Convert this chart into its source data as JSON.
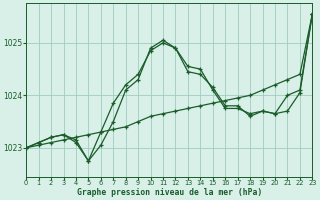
{
  "title": "Graphe pression niveau de la mer (hPa)",
  "bg_color": "#d8f0e8",
  "grid_color": "#a0ccc0",
  "line_color": "#1a5c2a",
  "xlim": [
    0,
    23
  ],
  "ylim": [
    1022.45,
    1025.75
  ],
  "yticks": [
    1023,
    1024,
    1025
  ],
  "xticks": [
    0,
    1,
    2,
    3,
    4,
    5,
    6,
    7,
    8,
    9,
    10,
    11,
    12,
    13,
    14,
    15,
    16,
    17,
    18,
    19,
    20,
    21,
    22,
    23
  ],
  "series1_x": [
    0,
    1,
    2,
    3,
    4,
    5,
    6,
    7,
    8,
    9,
    10,
    11,
    12,
    13,
    14,
    15,
    16,
    17,
    18,
    19,
    20,
    21,
    22,
    23
  ],
  "series1_y": [
    1023.0,
    1023.05,
    1023.1,
    1023.15,
    1023.2,
    1023.25,
    1023.3,
    1023.35,
    1023.4,
    1023.5,
    1023.6,
    1023.65,
    1023.7,
    1023.75,
    1023.8,
    1023.85,
    1023.9,
    1023.95,
    1024.0,
    1024.1,
    1024.2,
    1024.3,
    1024.4,
    1025.55
  ],
  "series2_x": [
    0,
    1,
    2,
    3,
    4,
    5,
    6,
    7,
    8,
    9,
    10,
    11,
    12,
    13,
    14,
    15,
    16,
    17,
    18,
    19,
    20,
    21,
    22,
    23
  ],
  "series2_y": [
    1023.0,
    1023.1,
    1023.2,
    1023.25,
    1023.15,
    1022.75,
    1023.05,
    1023.5,
    1024.1,
    1024.3,
    1024.9,
    1025.05,
    1024.9,
    1024.55,
    1024.5,
    1024.1,
    1023.75,
    1023.75,
    1023.65,
    1023.7,
    1023.65,
    1024.0,
    1024.1,
    1025.55
  ],
  "series3_x": [
    0,
    1,
    2,
    3,
    4,
    5,
    6,
    7,
    8,
    9,
    10,
    11,
    12,
    13,
    14,
    15,
    16,
    17,
    18,
    19,
    20,
    21,
    22,
    23
  ],
  "series3_y": [
    1023.0,
    1023.1,
    1023.2,
    1023.25,
    1023.1,
    1022.75,
    1023.3,
    1023.85,
    1024.2,
    1024.4,
    1024.85,
    1025.0,
    1024.9,
    1024.45,
    1024.4,
    1024.15,
    1023.8,
    1023.8,
    1023.6,
    1023.7,
    1023.65,
    1023.7,
    1024.05,
    1025.55
  ]
}
